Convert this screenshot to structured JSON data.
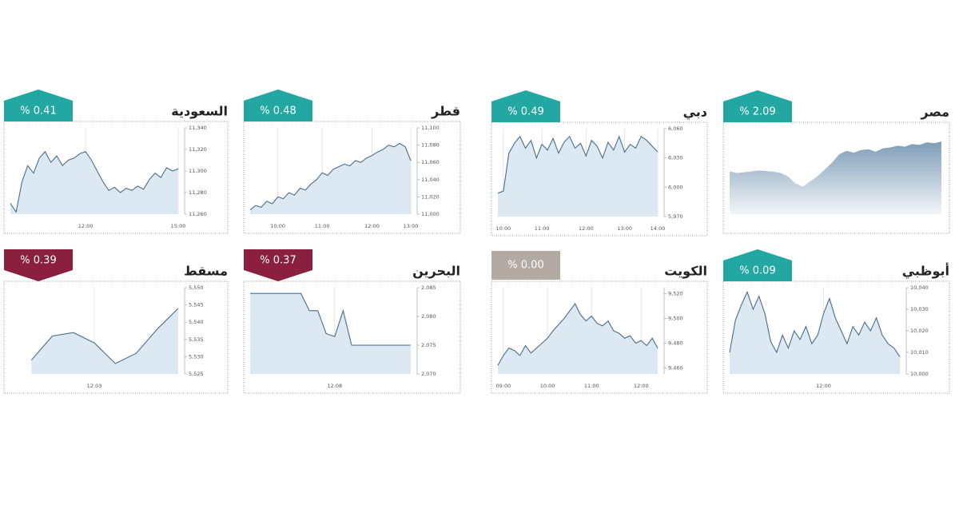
{
  "chart_data": [
    {
      "type": "area",
      "title": "السعودية",
      "change_label": "% 0.41",
      "badge_color": "#22a7a2",
      "badge_shape": "up",
      "line_color": "#4a6d8c",
      "fill_color": "#dce9f3",
      "categories": [
        null,
        null,
        null,
        null,
        null,
        null,
        null,
        null,
        null,
        null,
        null,
        null,
        null,
        "12:00",
        null,
        null,
        null,
        null,
        null,
        null,
        null,
        null,
        null,
        null,
        null,
        null,
        null,
        null,
        null,
        "15:00"
      ],
      "values": [
        11270,
        11262,
        11290,
        11305,
        11298,
        11312,
        11318,
        11308,
        11314,
        11305,
        11310,
        11312,
        11316,
        11318,
        11310,
        11300,
        11290,
        11282,
        11285,
        11280,
        11284,
        11282,
        11286,
        11283,
        11292,
        11298,
        11294,
        11303,
        11300,
        11302
      ],
      "ylim": [
        11260,
        11340
      ],
      "yticks": [
        {
          "value": 11340,
          "label": "11,340"
        },
        {
          "value": 11320,
          "label": "11,320"
        },
        {
          "value": 11300,
          "label": "11,300"
        },
        {
          "value": 11280,
          "label": "11,280"
        },
        {
          "value": 11260,
          "label": "11,260"
        }
      ]
    },
    {
      "type": "area",
      "title": "قطر",
      "change_label": "% 0.48",
      "badge_color": "#22a7a2",
      "badge_shape": "up",
      "line_color": "#4a6d8c",
      "fill_color": "#dce9f3",
      "categories": [
        null,
        null,
        null,
        null,
        null,
        "10:00",
        null,
        null,
        null,
        null,
        null,
        null,
        null,
        "11:00",
        null,
        null,
        null,
        null,
        null,
        null,
        null,
        null,
        "12:00",
        null,
        null,
        null,
        null,
        null,
        null,
        "13:00"
      ],
      "values": [
        11005,
        11010,
        11008,
        11015,
        11012,
        11020,
        11018,
        11025,
        11022,
        11030,
        11028,
        11035,
        11040,
        11048,
        11045,
        11052,
        11055,
        11058,
        11056,
        11062,
        11060,
        11065,
        11068,
        11072,
        11075,
        11080,
        11078,
        11082,
        11078,
        11062
      ],
      "ylim": [
        11000,
        11100
      ],
      "yticks": [
        {
          "value": 11100,
          "label": "11,100"
        },
        {
          "value": 11080,
          "label": "11,080"
        },
        {
          "value": 11060,
          "label": "11,060"
        },
        {
          "value": 11040,
          "label": "11,040"
        },
        {
          "value": 11020,
          "label": "11,020"
        },
        {
          "value": 11000,
          "label": "11,000"
        }
      ]
    },
    {
      "type": "area",
      "title": "دبي",
      "change_label": "% 0.49",
      "badge_color": "#22a7a2",
      "badge_shape": "up",
      "line_color": "#4a6d8c",
      "fill_color": "#dce9f3",
      "categories": [
        null,
        "10:00",
        null,
        null,
        null,
        null,
        null,
        null,
        "11:00",
        null,
        null,
        null,
        null,
        null,
        null,
        null,
        "12:00",
        null,
        null,
        null,
        null,
        null,
        null,
        "13:00",
        null,
        null,
        null,
        null,
        null,
        "14:00"
      ],
      "values": [
        5994,
        5996,
        6035,
        6045,
        6052,
        6040,
        6048,
        6030,
        6044,
        6038,
        6050,
        6035,
        6046,
        6052,
        6040,
        6045,
        6032,
        6048,
        6042,
        6030,
        6046,
        6038,
        6052,
        6036,
        6044,
        6040,
        6052,
        6048,
        6042,
        6036
      ],
      "ylim": [
        5970,
        6060
      ],
      "yticks": [
        {
          "value": 6060,
          "label": "6,060"
        },
        {
          "value": 6030,
          "label": "6,030"
        },
        {
          "value": 6000,
          "label": "6,000"
        },
        {
          "value": 5970,
          "label": "5,970"
        }
      ]
    },
    {
      "type": "area",
      "title": "مصر",
      "change_label": "% 2.09",
      "badge_color": "#22a7a2",
      "badge_shape": "up",
      "fill_color": "#7f9db8",
      "categories": [
        null,
        null,
        null,
        null,
        null,
        null,
        null,
        null,
        null,
        null,
        null,
        null,
        null,
        null,
        null,
        null,
        null,
        null,
        null,
        null,
        null,
        null,
        null,
        null,
        null,
        null,
        null,
        null,
        null,
        null
      ],
      "values": [
        9050,
        9040,
        9045,
        9050,
        9055,
        9052,
        9048,
        9040,
        9020,
        8980,
        8960,
        8990,
        9020,
        9060,
        9100,
        9150,
        9170,
        9160,
        9175,
        9180,
        9165,
        9185,
        9190,
        9200,
        9195,
        9210,
        9205,
        9220,
        9215,
        9225
      ],
      "ylim": [
        8800,
        9300
      ]
    },
    {
      "type": "area",
      "title": "مسقط",
      "change_label": "% 0.39",
      "badge_color": "#8a1f40",
      "badge_shape": "down",
      "line_color": "#4a6d8c",
      "fill_color": "#dce9f3",
      "categories": [
        null,
        null,
        null,
        null,
        "12:03",
        null,
        null,
        null,
        null
      ],
      "values": [
        null,
        5529,
        5536,
        5537,
        5534,
        5528,
        5531,
        5538,
        5544
      ],
      "ylim": [
        5525,
        5550
      ],
      "yticks": [
        {
          "value": 5550,
          "label": "5,550"
        },
        {
          "value": 5545,
          "label": "5,545"
        },
        {
          "value": 5540,
          "label": "5,540"
        },
        {
          "value": 5535,
          "label": "5,535"
        },
        {
          "value": 5530,
          "label": "5,530"
        },
        {
          "value": 5525,
          "label": "5,525"
        }
      ]
    },
    {
      "type": "area",
      "title": "البحرين",
      "change_label": "% 0.37",
      "badge_color": "#8a1f40",
      "badge_shape": "down",
      "line_color": "#4a6d8c",
      "fill_color": "#dce9f3",
      "categories": [
        null,
        null,
        null,
        null,
        null,
        null,
        null,
        null,
        null,
        null,
        "12:08",
        null,
        null,
        null,
        null,
        null,
        null,
        null,
        null,
        null
      ],
      "values": [
        2084,
        2084,
        2084,
        2084,
        2084,
        2084,
        2084,
        2081,
        2081,
        2077,
        2076.5,
        2081,
        2075,
        2075,
        2075,
        2075,
        2075,
        2075,
        2075,
        2075
      ],
      "ylim": [
        2070,
        2085
      ],
      "yticks": [
        {
          "value": 2085,
          "label": "2,085"
        },
        {
          "value": 2080,
          "label": "2,080"
        },
        {
          "value": 2075,
          "label": "2,075"
        },
        {
          "value": 2070,
          "label": "2,070"
        }
      ]
    },
    {
      "type": "area",
      "title": "الكويت",
      "change_label": "% 0.00",
      "badge_color": "#b3aba3",
      "badge_shape": "flat",
      "line_color": "#4a6d8c",
      "fill_color": "#dce9f3",
      "categories": [
        null,
        "09:00",
        null,
        null,
        null,
        null,
        null,
        null,
        null,
        "10:00",
        null,
        null,
        null,
        null,
        null,
        null,
        null,
        "11:00",
        null,
        null,
        null,
        null,
        null,
        null,
        null,
        null,
        "12:00",
        null,
        null,
        null
      ],
      "values": [
        9462,
        9470,
        9476,
        9474,
        9470,
        9478,
        9472,
        9476,
        9480,
        9484,
        9490,
        9495,
        9500,
        9506,
        9512,
        9503,
        9498,
        9502,
        9496,
        9494,
        9498,
        9490,
        9488,
        9484,
        9486,
        9480,
        9482,
        9478,
        9484,
        9476
      ],
      "ylim": [
        9455,
        9525
      ],
      "yticks": [
        {
          "value": 9520,
          "label": "9,520"
        },
        {
          "value": 9500,
          "label": "9,500"
        },
        {
          "value": 9480,
          "label": "9,480"
        },
        {
          "value": 9460,
          "label": "9,460"
        }
      ]
    },
    {
      "type": "area",
      "title": "أبوظبي",
      "change_label": "% 0.09",
      "badge_color": "#22a7a2",
      "badge_shape": "up",
      "line_color": "#4a6d8c",
      "fill_color": "#dce9f3",
      "categories": [
        null,
        null,
        null,
        null,
        null,
        null,
        null,
        null,
        null,
        null,
        null,
        null,
        null,
        null,
        null,
        null,
        "12:00",
        null,
        null,
        null,
        null,
        null,
        null,
        null,
        null,
        null,
        null,
        null,
        null,
        null
      ],
      "values": [
        10010,
        10025,
        10032,
        10038,
        10030,
        10036,
        10028,
        10015,
        10010,
        10018,
        10012,
        10020,
        10016,
        10022,
        10014,
        10018,
        10028,
        10035,
        10026,
        10020,
        10014,
        10022,
        10018,
        10024,
        10020,
        10026,
        10018,
        10014,
        10012,
        10008
      ],
      "ylim": [
        10000,
        10040
      ],
      "yticks": [
        {
          "value": 10040,
          "label": "10,040"
        },
        {
          "value": 10030,
          "label": "10,030"
        },
        {
          "value": 10020,
          "label": "10,020"
        },
        {
          "value": 10010,
          "label": "10,010"
        },
        {
          "value": 10000,
          "label": "10,000"
        }
      ]
    }
  ]
}
